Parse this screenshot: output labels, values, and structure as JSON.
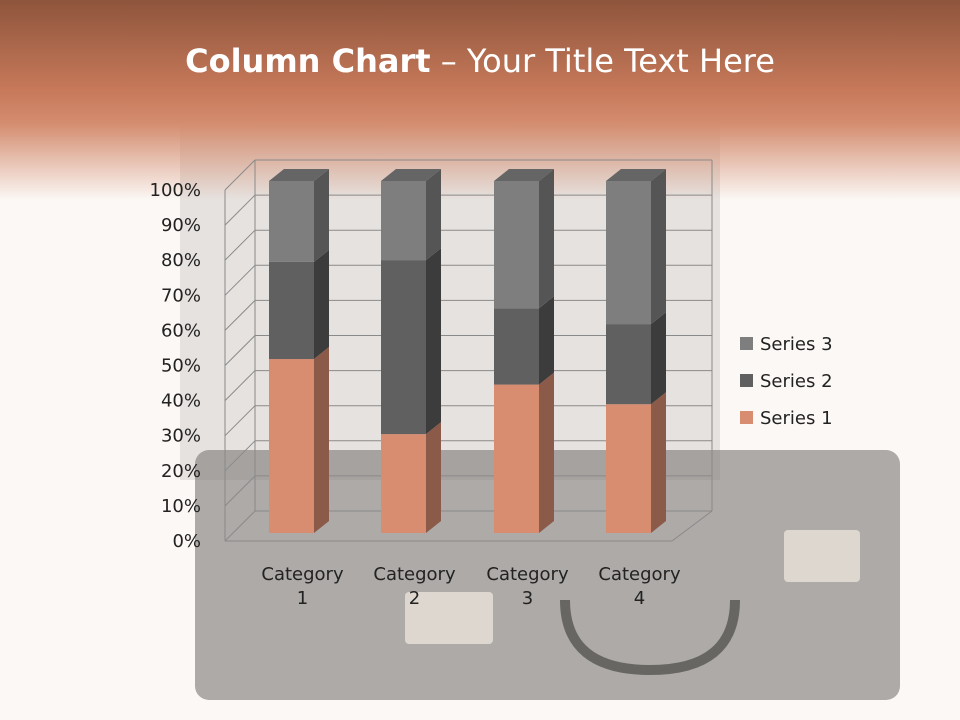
{
  "slide": {
    "title_bold": "Column Chart",
    "title_rest": " – Your Title Text Here"
  },
  "chart_data": {
    "type": "bar",
    "stacking": "percent",
    "three_d": true,
    "categories": [
      "Category 1",
      "Category 2",
      "Category 3",
      "Category 4"
    ],
    "category_label_lines": [
      [
        "Category",
        "1"
      ],
      [
        "Category",
        "2"
      ],
      [
        "Category",
        "3"
      ],
      [
        "Category",
        "4"
      ]
    ],
    "series": [
      {
        "name": "Series 1",
        "values": [
          4.3,
          2.5,
          3.5,
          4.5
        ],
        "color": "#d88c70",
        "side": "#8c5a48"
      },
      {
        "name": "Series 2",
        "values": [
          2.4,
          4.4,
          1.8,
          2.8
        ],
        "color": "#606060",
        "side": "#3c3c3c"
      },
      {
        "name": "Series 3",
        "values": [
          2,
          2,
          3,
          5
        ],
        "color": "#7e7e7e",
        "side": "#555555"
      }
    ],
    "y_ticks": [
      "0%",
      "10%",
      "20%",
      "30%",
      "40%",
      "50%",
      "60%",
      "70%",
      "80%",
      "90%",
      "100%"
    ],
    "ylim": [
      0,
      100
    ],
    "grid": true,
    "legend_position": "right"
  }
}
